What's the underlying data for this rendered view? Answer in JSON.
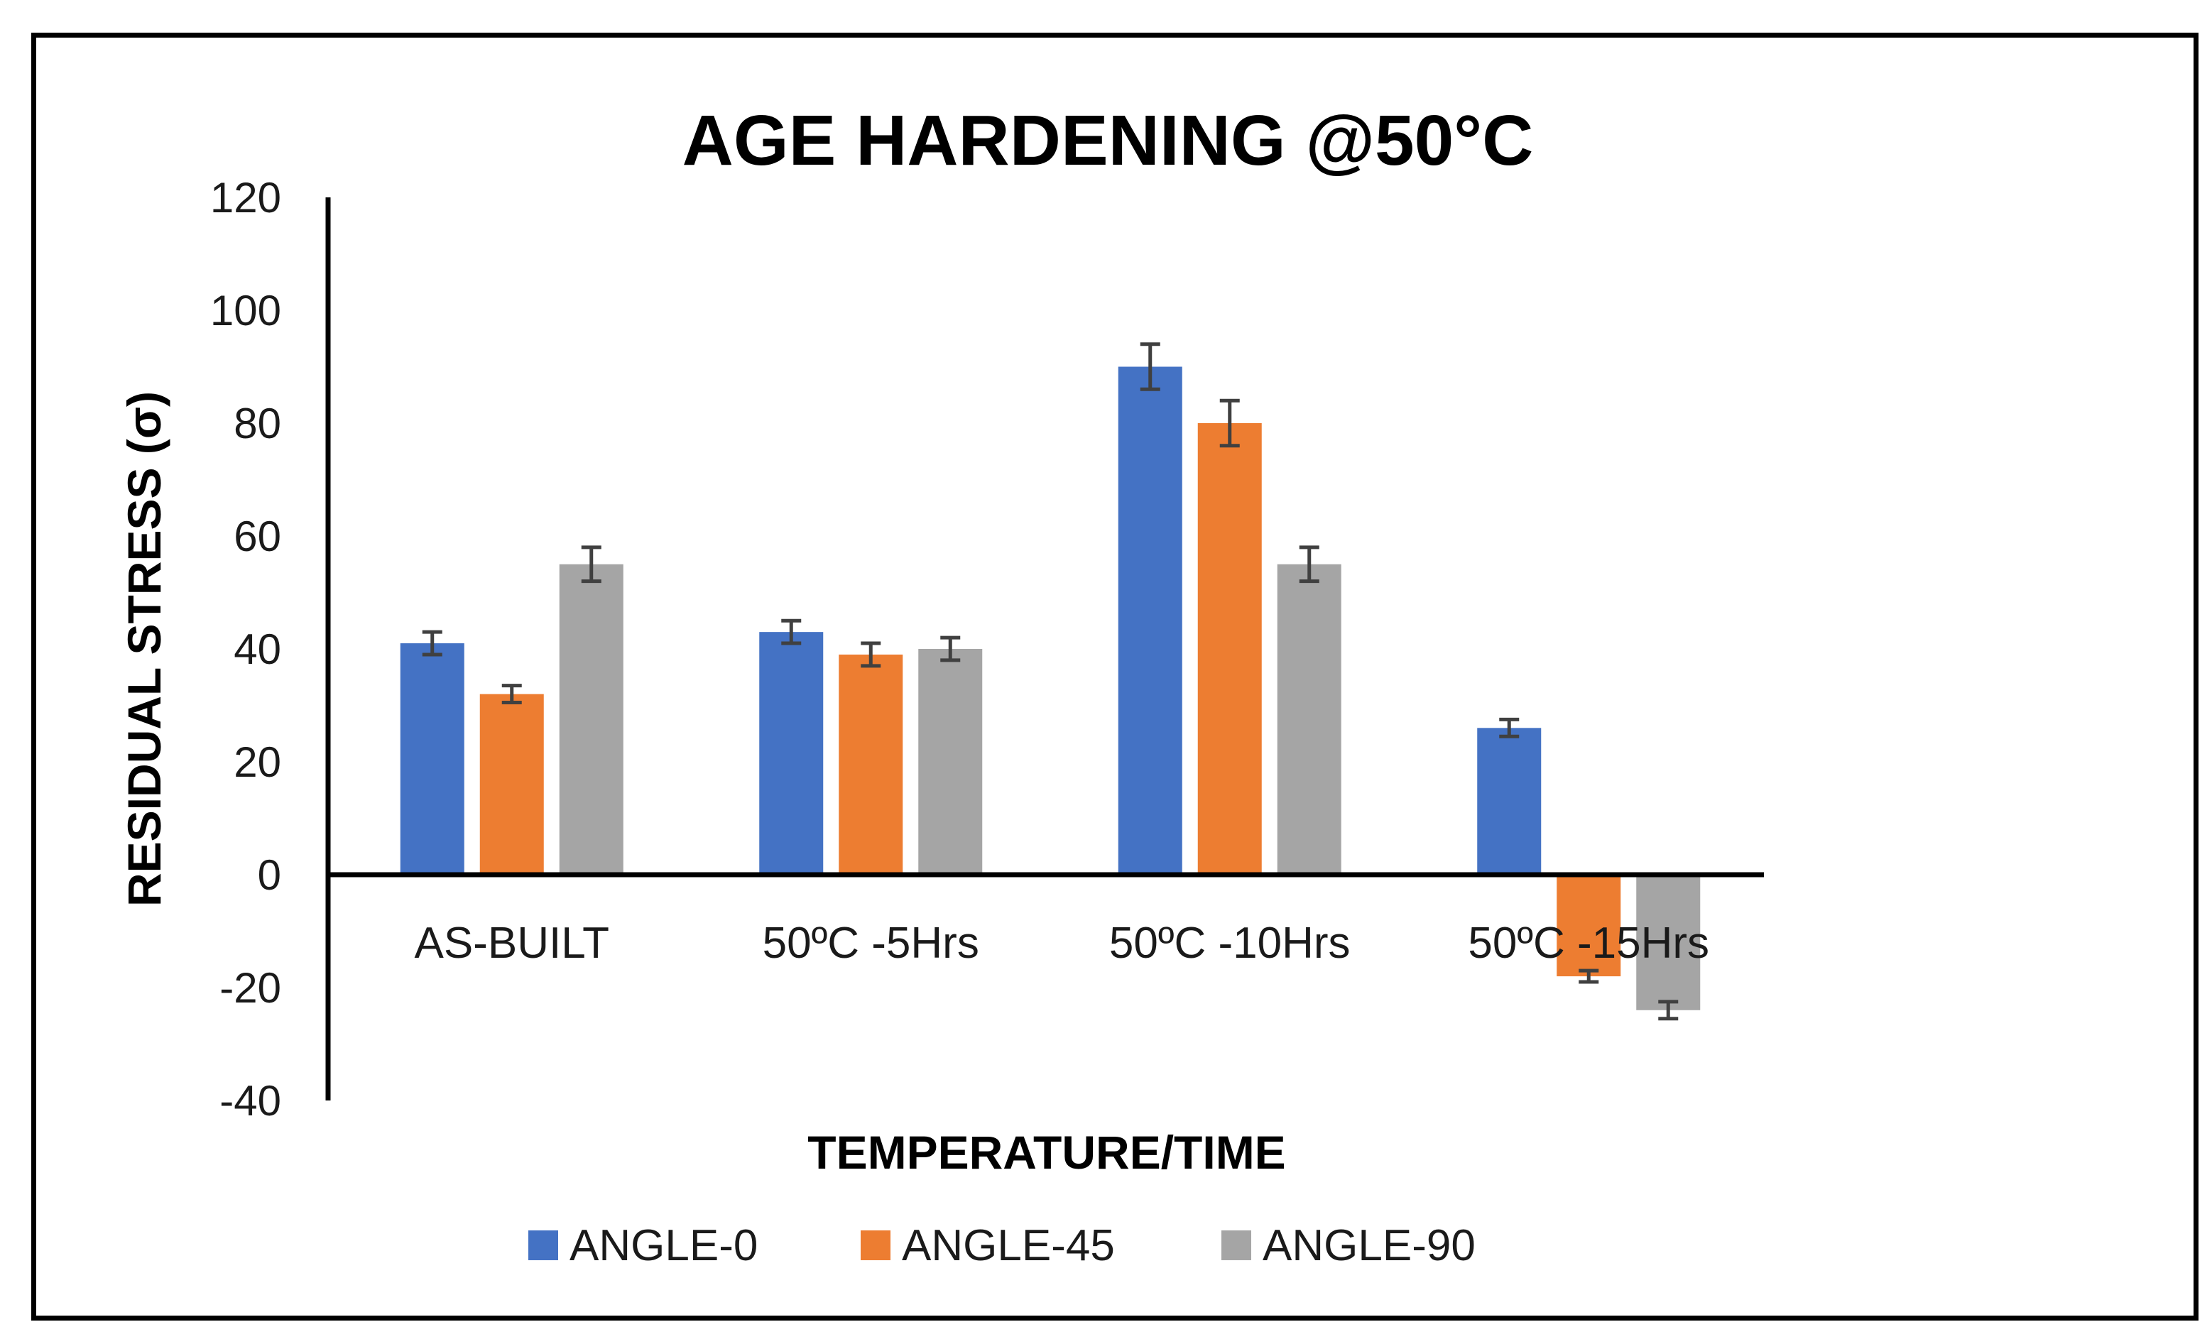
{
  "chart_data": {
    "type": "bar",
    "title": "AGE HARDENING @50°C",
    "xlabel": "TEMPERATURE/TIME",
    "ylabel": "RESIDUAL STRESS (σ)",
    "ylim": [
      -40,
      120
    ],
    "yticks": [
      120,
      100,
      80,
      60,
      40,
      20,
      0,
      -20,
      -40
    ],
    "grid": false,
    "legend_position": "bottom",
    "categories": [
      "AS-BUILT",
      "50ºC -5Hrs",
      "50ºC -10Hrs",
      "50ºC -15Hrs"
    ],
    "series": [
      {
        "name": "ANGLE-0",
        "color": "#4472C4",
        "values": [
          41,
          43,
          90,
          26
        ],
        "errors": [
          2,
          2,
          4,
          1.5
        ]
      },
      {
        "name": "ANGLE-45",
        "color": "#ED7D31",
        "values": [
          32,
          39,
          80,
          -18
        ],
        "errors": [
          1.5,
          2,
          4,
          1
        ]
      },
      {
        "name": "ANGLE-90",
        "color": "#A5A5A5",
        "values": [
          55,
          40,
          55,
          -24
        ],
        "errors": [
          3,
          2,
          3,
          1.5
        ]
      }
    ],
    "error_bar_color": "#404040"
  }
}
